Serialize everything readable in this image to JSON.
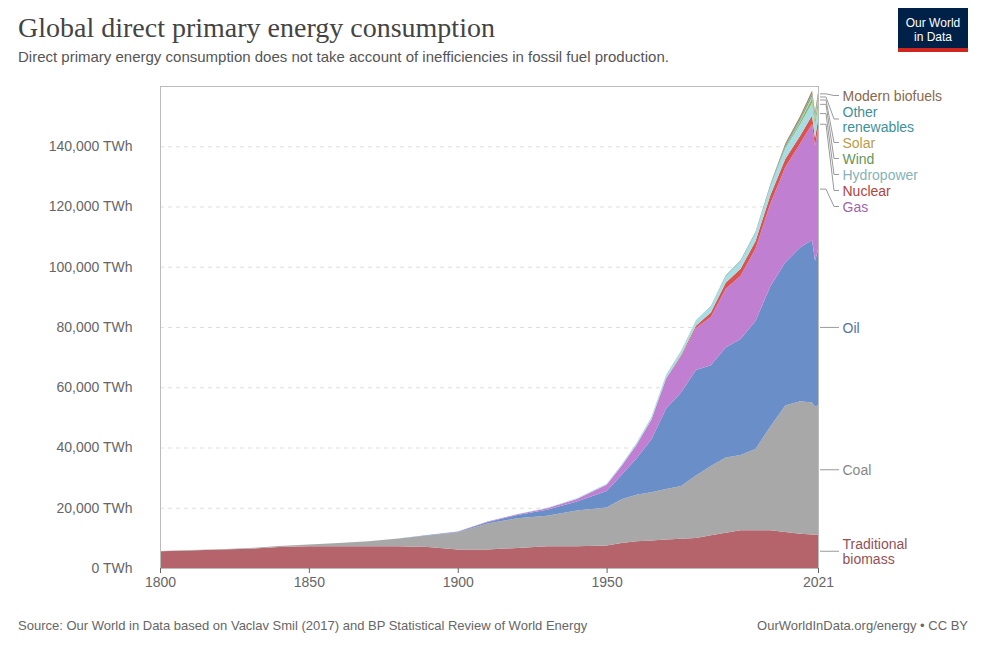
{
  "chart_data": {
    "type": "area",
    "title": "Global direct primary energy consumption",
    "subtitle": "Direct primary energy consumption does not take account of inefficiencies in fossil fuel production.",
    "logo": [
      "Our World",
      "in Data"
    ],
    "source": "Source: Our World in Data based on Vaclav Smil (2017) and BP Statistical Review of World Energy",
    "footer_right": "OurWorldInData.org/energy • CC BY",
    "stacked": true,
    "grid": true,
    "x": [
      1800,
      1810,
      1820,
      1830,
      1840,
      1850,
      1860,
      1870,
      1880,
      1890,
      1900,
      1910,
      1920,
      1930,
      1940,
      1950,
      1955,
      1960,
      1965,
      1970,
      1975,
      1980,
      1985,
      1990,
      1995,
      2000,
      2005,
      2010,
      2015,
      2019,
      2020,
      2021
    ],
    "xlim": [
      1800,
      2021
    ],
    "xticks": [
      1800,
      1850,
      1900,
      1950,
      2021
    ],
    "ylim": [
      0,
      160000
    ],
    "yticks": [
      {
        "value": 0,
        "label": "0 TWh"
      },
      {
        "value": 20000,
        "label": "20,000 TWh"
      },
      {
        "value": 40000,
        "label": "40,000 TWh"
      },
      {
        "value": 60000,
        "label": "60,000 TWh"
      },
      {
        "value": 80000,
        "label": "80,000 TWh"
      },
      {
        "value": 100000,
        "label": "100,000 TWh"
      },
      {
        "value": 120000,
        "label": "120,000 TWh"
      },
      {
        "value": 140000,
        "label": "140,000 TWh"
      }
    ],
    "series": [
      {
        "name": "Traditional biomass",
        "color": "#b5646b",
        "values": [
          5556,
          5833,
          6111,
          6389,
          6944,
          7222,
          7222,
          7222,
          7222,
          6944,
          6111,
          6111,
          6667,
          7222,
          7222,
          7500,
          8333,
          8889,
          9167,
          9444,
          9722,
          10000,
          10833,
          11667,
          12500,
          12500,
          12500,
          11944,
          11389,
          11111,
          11111,
          11111
        ]
      },
      {
        "name": "Coal",
        "color": "#a8a8a8",
        "values": [
          97,
          128,
          153,
          264,
          356,
          569,
          1061,
          1642,
          2542,
          3856,
          5728,
          8656,
          9833,
          10125,
          11861,
          12603,
          14500,
          15442,
          16000,
          16800,
          17500,
          20700,
          23000,
          25000,
          25000,
          27000,
          34500,
          42000,
          44000,
          43800,
          42400,
          43000
        ]
      },
      {
        "name": "Oil",
        "color": "#6a8ec8",
        "values": [
          0,
          0,
          0,
          0,
          0,
          0,
          0,
          6,
          44,
          178,
          181,
          514,
          1097,
          1964,
          3000,
          5444,
          8000,
          12000,
          17500,
          26700,
          31000,
          35000,
          33500,
          36500,
          38500,
          42500,
          46500,
          47500,
          51000,
          54000,
          48500,
          51500
        ]
      },
      {
        "name": "Gas",
        "color": "#c17fd1",
        "values": [
          0,
          0,
          0,
          0,
          0,
          0,
          0,
          0,
          0,
          0,
          64,
          150,
          233,
          550,
          861,
          2092,
          3000,
          4500,
          6500,
          10000,
          12000,
          14000,
          16000,
          19500,
          21000,
          24000,
          27500,
          31600,
          34500,
          38500,
          38000,
          40300
        ]
      },
      {
        "name": "Nuclear",
        "color": "#d9534f",
        "values": [
          0,
          0,
          0,
          0,
          0,
          0,
          0,
          0,
          0,
          0,
          0,
          0,
          0,
          0,
          0,
          0,
          0,
          0,
          25,
          80,
          380,
          710,
          1500,
          2000,
          2300,
          2500,
          2770,
          2760,
          2570,
          2800,
          2690,
          2800
        ]
      },
      {
        "name": "Hydropower",
        "color": "#a9dde3",
        "values": [
          0,
          0,
          0,
          0,
          0,
          0,
          0,
          0,
          0,
          0,
          0,
          0,
          60,
          130,
          190,
          340,
          500,
          690,
          920,
          1180,
          1450,
          1730,
          1980,
          2160,
          2490,
          2650,
          2930,
          3440,
          3880,
          4220,
          4340,
          4270
        ]
      },
      {
        "name": "Wind",
        "color": "#7fb86e",
        "values": [
          0,
          0,
          0,
          0,
          0,
          0,
          0,
          0,
          0,
          0,
          0,
          0,
          0,
          0,
          0,
          0,
          0,
          0,
          0,
          0,
          0,
          0,
          0,
          4,
          8,
          31,
          104,
          346,
          831,
          1420,
          1590,
          1860
        ]
      },
      {
        "name": "Solar",
        "color": "#e3c35a",
        "values": [
          0,
          0,
          0,
          0,
          0,
          0,
          0,
          0,
          0,
          0,
          0,
          0,
          0,
          0,
          0,
          0,
          0,
          0,
          0,
          0,
          0,
          0,
          0,
          0,
          0,
          1,
          4,
          34,
          256,
          704,
          846,
          1030
        ]
      },
      {
        "name": "Other renewables",
        "color": "#4fb3bf",
        "values": [
          0,
          0,
          0,
          0,
          0,
          0,
          0,
          0,
          0,
          0,
          0,
          0,
          0,
          0,
          0,
          0,
          0,
          0,
          40,
          50,
          60,
          100,
          150,
          240,
          280,
          320,
          400,
          560,
          740,
          880,
          920,
          970
        ]
      },
      {
        "name": "Modern biofuels",
        "color": "#a8825e",
        "values": [
          0,
          0,
          0,
          0,
          0,
          0,
          0,
          0,
          0,
          0,
          0,
          0,
          0,
          0,
          0,
          0,
          0,
          0,
          0,
          0,
          0,
          0,
          0,
          90,
          100,
          110,
          220,
          690,
          880,
          1100,
          1030,
          1100
        ]
      }
    ]
  }
}
